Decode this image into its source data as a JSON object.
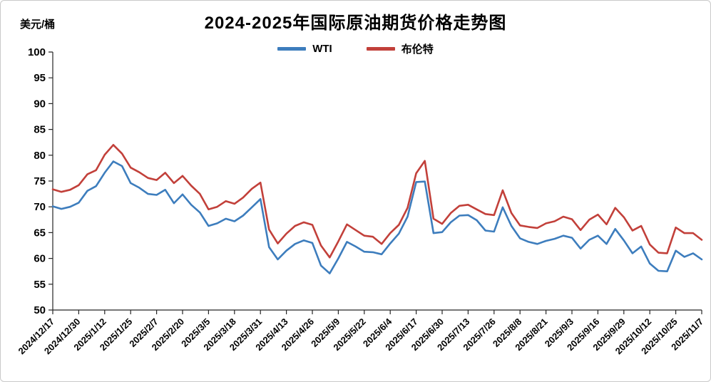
{
  "chart_data": {
    "type": "line",
    "title": "2024-2025年国际原油期货价格走势图",
    "ylabel": "美元/桶",
    "xlabel": "",
    "ylim": [
      50,
      100
    ],
    "y_ticks": [
      50,
      55,
      60,
      65,
      70,
      75,
      80,
      85,
      90,
      95,
      100
    ],
    "grid": false,
    "legend_position": "top",
    "x_tick_labels": [
      "2024/12/17",
      "2024/12/30",
      "2025/1/12",
      "2025/1/25",
      "2025/2/7",
      "2025/2/20",
      "2025/3/5",
      "2025/3/18",
      "2025/3/31",
      "2025/4/13",
      "2025/4/26",
      "2025/5/9",
      "2025/5/22",
      "2025/6/4",
      "2025/6/17",
      "2025/6/30",
      "2025/7/13",
      "2025/7/26",
      "2025/8/8",
      "2025/8/21",
      "2025/9/3",
      "2025/9/16",
      "2025/9/29",
      "2025/10/12",
      "2025/10/25",
      "2025/11/7"
    ],
    "samples_per_label_interval": 3,
    "series": [
      {
        "name": "WTI",
        "color": "#3d7dbd",
        "values": [
          70.1,
          69.6,
          70.0,
          70.8,
          73.1,
          74.0,
          76.6,
          78.8,
          77.9,
          74.6,
          73.7,
          72.5,
          72.3,
          73.3,
          70.7,
          72.4,
          70.4,
          68.9,
          66.3,
          66.8,
          67.7,
          67.2,
          68.3,
          69.9,
          71.5,
          62.2,
          59.8,
          61.5,
          62.8,
          63.5,
          63.0,
          58.6,
          57.1,
          60.0,
          63.2,
          62.3,
          61.3,
          61.2,
          60.8,
          62.9,
          64.8,
          68.1,
          74.8,
          74.9,
          64.9,
          65.1,
          67.0,
          68.3,
          68.4,
          67.4,
          65.4,
          65.2,
          69.9,
          66.3,
          63.9,
          63.2,
          62.8,
          63.4,
          63.8,
          64.4,
          64.0,
          61.9,
          63.6,
          64.4,
          62.8,
          65.7,
          63.5,
          61.0,
          62.3,
          59.0,
          57.6,
          57.5,
          61.5,
          60.3,
          61.0,
          59.8
        ]
      },
      {
        "name": "布伦特",
        "color": "#c2403a",
        "values": [
          73.4,
          72.9,
          73.3,
          74.2,
          76.3,
          77.1,
          80.1,
          82.0,
          80.3,
          77.6,
          76.7,
          75.6,
          75.2,
          76.6,
          74.6,
          76.0,
          74.1,
          72.5,
          69.5,
          70.0,
          71.1,
          70.6,
          71.8,
          73.5,
          74.7,
          65.6,
          62.9,
          64.8,
          66.3,
          67.0,
          66.5,
          62.5,
          60.2,
          63.3,
          66.6,
          65.5,
          64.4,
          64.2,
          62.8,
          64.9,
          66.5,
          69.8,
          76.5,
          78.9,
          67.7,
          66.7,
          68.8,
          70.2,
          70.4,
          69.5,
          68.6,
          68.4,
          73.2,
          68.8,
          66.4,
          66.1,
          65.9,
          66.8,
          67.2,
          68.1,
          67.6,
          65.5,
          67.5,
          68.5,
          66.6,
          69.8,
          68.0,
          65.4,
          66.3,
          62.7,
          61.1,
          61.0,
          66.0,
          64.9,
          64.9,
          63.6
        ]
      }
    ]
  }
}
